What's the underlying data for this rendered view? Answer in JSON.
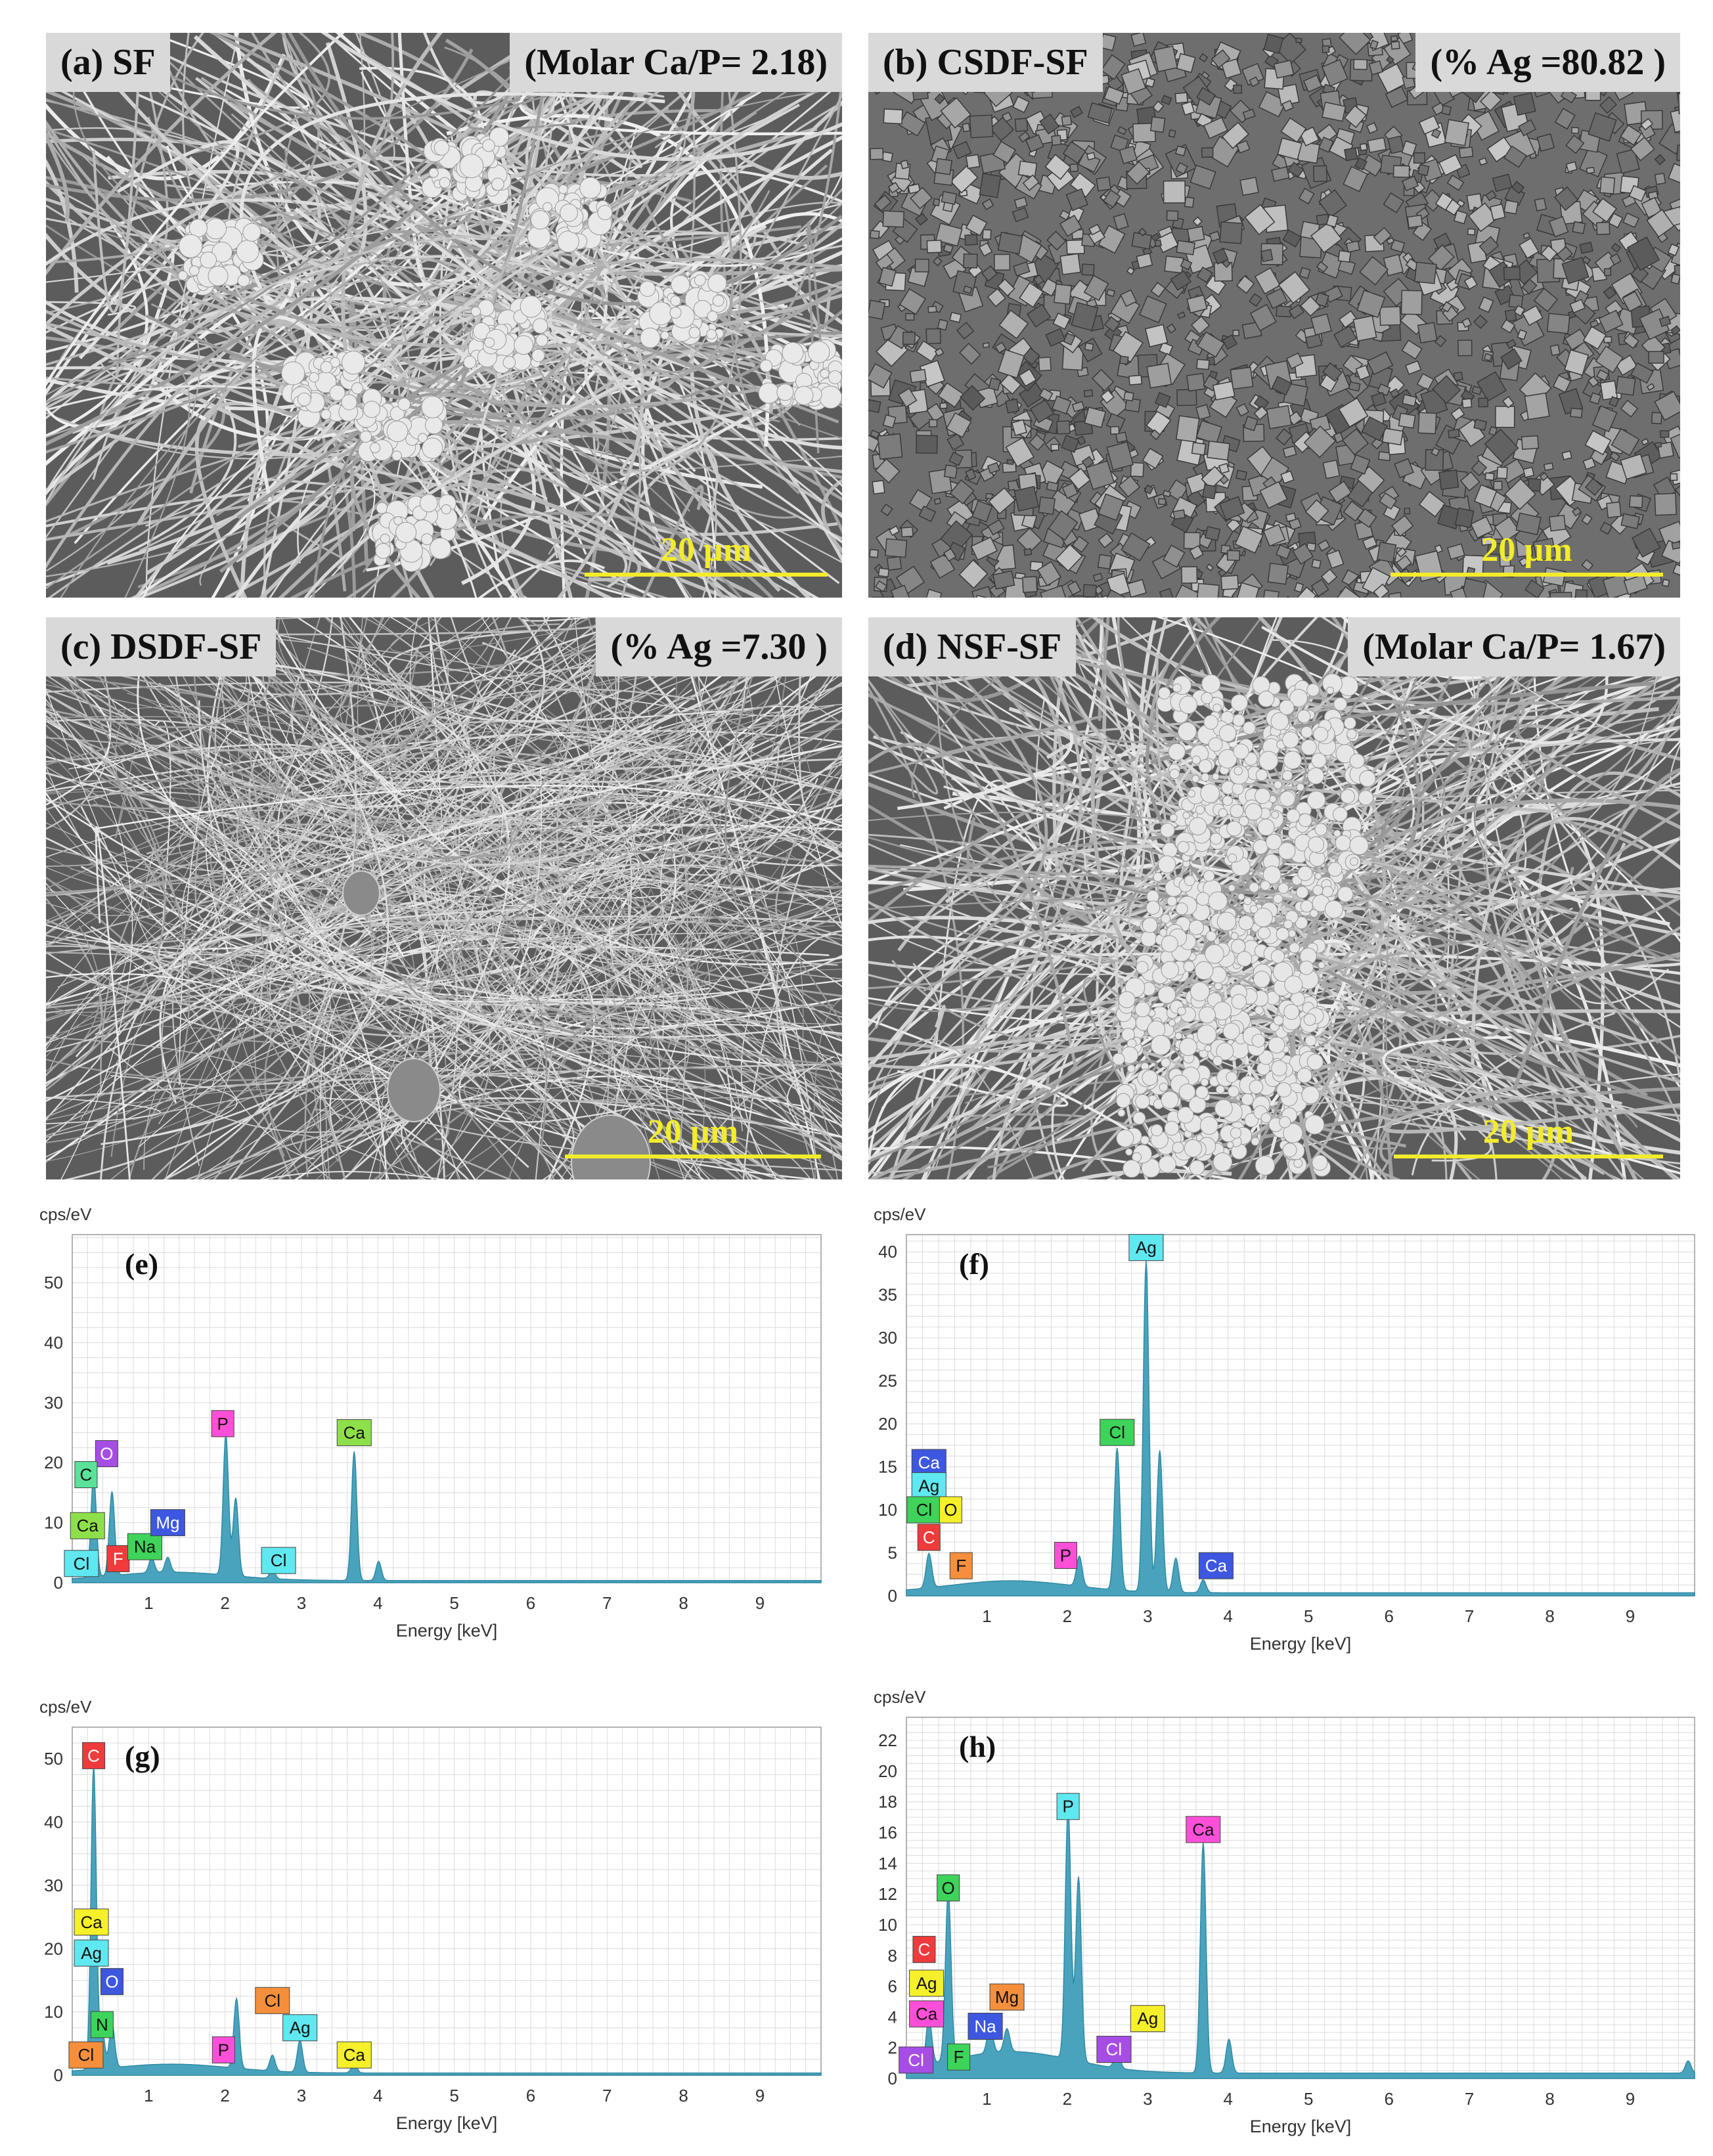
{
  "sem_panels": [
    {
      "label": "(a) SF",
      "info": "(Molar Ca/P= 2.18)",
      "scale": "20 µm",
      "texture": "fibers-clusters"
    },
    {
      "label": "(b) CSDF-SF",
      "info": "(% Ag =80.82 )",
      "scale": "20 µm",
      "texture": "crystals"
    },
    {
      "label": "(c) DSDF-SF",
      "info": "(% Ag =7.30 )",
      "scale": "20 µm",
      "texture": "fine-fibers"
    },
    {
      "label": "(d) NSF-SF",
      "info": "(Molar Ca/P= 1.67)",
      "scale": "20 µm",
      "texture": "fibers-aggregate"
    }
  ],
  "colors": {
    "spectrum_fill": "#4aa3bd",
    "spectrum_line": "#2f8aa5",
    "grid": "#dcdcdc",
    "scale_bar": "#f2ec2a",
    "sem_bg": "#7a7a7a",
    "tag_bg": "#d9d9d9",
    "el_C": "#ef3b3b",
    "el_O_purple": "#a64de6",
    "el_Ca_green": "#8ee04a",
    "el_Cl_cyan": "#5fe8f0",
    "el_P_pink": "#ff4fd8",
    "el_Mg_blue": "#3d57e0",
    "el_F_red": "#ef3b3b",
    "el_Na_green": "#3ed35a",
    "el_Ag_cyan": "#5fe8f0",
    "el_yellow": "#f5f02a",
    "el_orange": "#f58f3b"
  },
  "chart_data": [
    {
      "panel": "(e)",
      "type": "area",
      "ylabel": "cps/eV",
      "xlabel": "Energy [keV]",
      "xlim": [
        0,
        9.8
      ],
      "ylim": [
        0,
        58
      ],
      "xticks": [
        1,
        2,
        3,
        4,
        5,
        6,
        7,
        8,
        9
      ],
      "yticks": [
        0,
        10,
        20,
        30,
        40,
        50
      ],
      "grid": true,
      "peaks": [
        {
          "x": 0.28,
          "y": 17
        },
        {
          "x": 0.52,
          "y": 14
        },
        {
          "x": 1.04,
          "y": 2.5
        },
        {
          "x": 1.25,
          "y": 2.5
        },
        {
          "x": 2.01,
          "y": 23.5
        },
        {
          "x": 2.14,
          "y": 13
        },
        {
          "x": 2.62,
          "y": 1.5
        },
        {
          "x": 3.69,
          "y": 21.5
        },
        {
          "x": 4.01,
          "y": 3.2
        }
      ],
      "labels": [
        {
          "text": "O",
          "x": 0.45,
          "y": 21.5,
          "color": "#a64de6"
        },
        {
          "text": "C",
          "x": 0.18,
          "y": 18,
          "color": "#5be29a"
        },
        {
          "text": "Ca",
          "x": 0.2,
          "y": 9.5,
          "color": "#8ee04a"
        },
        {
          "text": "Cl",
          "x": 0.12,
          "y": 3.2,
          "color": "#5fe8f0"
        },
        {
          "text": "F",
          "x": 0.6,
          "y": 4,
          "color": "#ef3b3b"
        },
        {
          "text": "Na",
          "x": 0.95,
          "y": 6,
          "color": "#3ed35a"
        },
        {
          "text": "Mg",
          "x": 1.25,
          "y": 10,
          "color": "#3d57e0"
        },
        {
          "text": "P",
          "x": 1.97,
          "y": 26.5,
          "color": "#ff4fd8"
        },
        {
          "text": "Cl",
          "x": 2.7,
          "y": 3.7,
          "color": "#5fe8f0"
        },
        {
          "text": "Ca",
          "x": 3.69,
          "y": 25,
          "color": "#8ee04a"
        }
      ]
    },
    {
      "panel": "(f)",
      "type": "area",
      "ylabel": "cps/eV",
      "xlabel": "Energy [keV]",
      "xlim": [
        0,
        9.8
      ],
      "ylim": [
        0,
        42
      ],
      "xticks": [
        1,
        2,
        3,
        4,
        5,
        6,
        7,
        8,
        9
      ],
      "yticks": [
        0,
        5,
        10,
        15,
        20,
        25,
        30,
        35,
        40
      ],
      "grid": true,
      "peaks": [
        {
          "x": 0.28,
          "y": 4
        },
        {
          "x": 2.15,
          "y": 3.5
        },
        {
          "x": 2.62,
          "y": 16.5
        },
        {
          "x": 2.98,
          "y": 38.5
        },
        {
          "x": 3.15,
          "y": 16.5
        },
        {
          "x": 3.35,
          "y": 4
        },
        {
          "x": 3.69,
          "y": 1.5
        }
      ],
      "labels": [
        {
          "text": "Ag",
          "x": 2.98,
          "y": 40.5,
          "color": "#5fe8f0"
        },
        {
          "text": "Cl",
          "x": 2.62,
          "y": 19,
          "color": "#3ed35a"
        },
        {
          "text": "Ca",
          "x": 0.28,
          "y": 15.5,
          "color": "#3d57e0"
        },
        {
          "text": "Ag",
          "x": 0.28,
          "y": 12.8,
          "color": "#5fe8f0"
        },
        {
          "text": "Cl",
          "x": 0.22,
          "y": 10,
          "color": "#3ed35a"
        },
        {
          "text": "O",
          "x": 0.55,
          "y": 10,
          "color": "#f5f02a"
        },
        {
          "text": "C",
          "x": 0.28,
          "y": 6.8,
          "color": "#ef3b3b"
        },
        {
          "text": "F",
          "x": 0.68,
          "y": 3.5,
          "color": "#f58f3b"
        },
        {
          "text": "P",
          "x": 1.98,
          "y": 4.7,
          "color": "#ff4fd8"
        },
        {
          "text": "Ca",
          "x": 3.85,
          "y": 3.5,
          "color": "#3d57e0"
        }
      ]
    },
    {
      "panel": "(g)",
      "type": "area",
      "ylabel": "cps/eV",
      "xlabel": "Energy [keV]",
      "xlim": [
        0,
        9.8
      ],
      "ylim": [
        0,
        55
      ],
      "xticks": [
        1,
        2,
        3,
        4,
        5,
        6,
        7,
        8,
        9
      ],
      "yticks": [
        0,
        10,
        20,
        30,
        40,
        50
      ],
      "grid": true,
      "peaks": [
        {
          "x": 0.28,
          "y": 48
        },
        {
          "x": 0.39,
          "y": 6
        },
        {
          "x": 0.52,
          "y": 7
        },
        {
          "x": 2.15,
          "y": 11
        },
        {
          "x": 2.62,
          "y": 2.5
        },
        {
          "x": 2.98,
          "y": 5
        },
        {
          "x": 3.69,
          "y": 1.5
        }
      ],
      "labels": [
        {
          "text": "C",
          "x": 0.28,
          "y": 50.5,
          "color": "#ef3b3b"
        },
        {
          "text": "Ca",
          "x": 0.25,
          "y": 24.2,
          "color": "#f5f02a"
        },
        {
          "text": "Ag",
          "x": 0.25,
          "y": 19.3,
          "color": "#5fe8f0"
        },
        {
          "text": "O",
          "x": 0.52,
          "y": 14.8,
          "color": "#3d57e0"
        },
        {
          "text": "N",
          "x": 0.39,
          "y": 8,
          "color": "#3ed35a"
        },
        {
          "text": "Cl",
          "x": 0.18,
          "y": 3.2,
          "color": "#f58f3b"
        },
        {
          "text": "P",
          "x": 1.98,
          "y": 4,
          "color": "#ff4fd8"
        },
        {
          "text": "Cl",
          "x": 2.62,
          "y": 11.8,
          "color": "#f58f3b"
        },
        {
          "text": "Ag",
          "x": 2.98,
          "y": 7.5,
          "color": "#5fe8f0"
        },
        {
          "text": "Ca",
          "x": 3.69,
          "y": 3.2,
          "color": "#f5f02a"
        }
      ]
    },
    {
      "panel": "(h)",
      "type": "area",
      "ylabel": "cps/eV",
      "xlabel": "Energy [keV]",
      "xlim": [
        0,
        9.8
      ],
      "ylim": [
        0,
        23.5
      ],
      "xticks": [
        1,
        2,
        3,
        4,
        5,
        6,
        7,
        8,
        9
      ],
      "yticks": [
        0,
        2,
        4,
        6,
        8,
        10,
        12,
        14,
        16,
        18,
        20,
        22
      ],
      "grid": true,
      "peaks": [
        {
          "x": 0.28,
          "y": 3
        },
        {
          "x": 0.52,
          "y": 11
        },
        {
          "x": 1.04,
          "y": 1.8
        },
        {
          "x": 1.25,
          "y": 1.5
        },
        {
          "x": 2.01,
          "y": 16.5
        },
        {
          "x": 2.14,
          "y": 12
        },
        {
          "x": 2.62,
          "y": 1.2
        },
        {
          "x": 3.69,
          "y": 15
        },
        {
          "x": 4.01,
          "y": 2.2
        },
        {
          "x": 9.72,
          "y": 0.8
        }
      ],
      "labels": [
        {
          "text": "P",
          "x": 2.01,
          "y": 17.7,
          "color": "#5fe8f0"
        },
        {
          "text": "Ca",
          "x": 3.69,
          "y": 16.2,
          "color": "#ff4fd8"
        },
        {
          "text": "O",
          "x": 0.52,
          "y": 12.4,
          "color": "#3ed35a"
        },
        {
          "text": "C",
          "x": 0.22,
          "y": 8.4,
          "color": "#ef3b3b"
        },
        {
          "text": "Ag",
          "x": 0.25,
          "y": 6.2,
          "color": "#f5f02a"
        },
        {
          "text": "Mg",
          "x": 1.25,
          "y": 5.3,
          "color": "#f58f3b"
        },
        {
          "text": "Ca",
          "x": 0.25,
          "y": 4.2,
          "color": "#ff4fd8"
        },
        {
          "text": "Na",
          "x": 0.98,
          "y": 3.4,
          "color": "#3d57e0"
        },
        {
          "text": "Ag",
          "x": 3.0,
          "y": 3.9,
          "color": "#f5f02a"
        },
        {
          "text": "Cl",
          "x": 2.58,
          "y": 1.9,
          "color": "#a64de6"
        },
        {
          "text": "F",
          "x": 0.65,
          "y": 1.4,
          "color": "#3ed35a"
        },
        {
          "text": "Cl",
          "x": 0.12,
          "y": 1.2,
          "color": "#a64de6"
        }
      ]
    }
  ]
}
